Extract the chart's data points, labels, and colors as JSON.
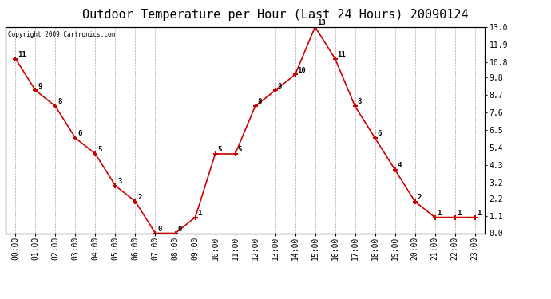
{
  "title": "Outdoor Temperature per Hour (Last 24 Hours) 20090124",
  "copyright_text": "Copyright 2009 Cartronics.com",
  "hours": [
    "00:00",
    "01:00",
    "02:00",
    "03:00",
    "04:00",
    "05:00",
    "06:00",
    "07:00",
    "08:00",
    "09:00",
    "10:00",
    "11:00",
    "12:00",
    "13:00",
    "14:00",
    "15:00",
    "16:00",
    "17:00",
    "18:00",
    "19:00",
    "20:00",
    "21:00",
    "22:00",
    "23:00"
  ],
  "values": [
    11,
    9,
    8,
    6,
    5,
    3,
    2,
    0,
    0,
    1,
    5,
    5,
    8,
    9,
    10,
    13,
    11,
    8,
    6,
    4,
    2,
    1,
    1,
    1
  ],
  "line_color": "#cc0000",
  "marker_color": "#cc0000",
  "bg_color": "#ffffff",
  "grid_color": "#aaaaaa",
  "title_fontsize": 11,
  "label_fontsize": 7,
  "annotation_fontsize": 6.5,
  "ylim": [
    0.0,
    13.0
  ],
  "yticks_right": [
    0.0,
    1.1,
    2.2,
    3.2,
    4.3,
    5.4,
    6.5,
    7.6,
    8.7,
    9.8,
    10.8,
    11.9,
    13.0
  ]
}
